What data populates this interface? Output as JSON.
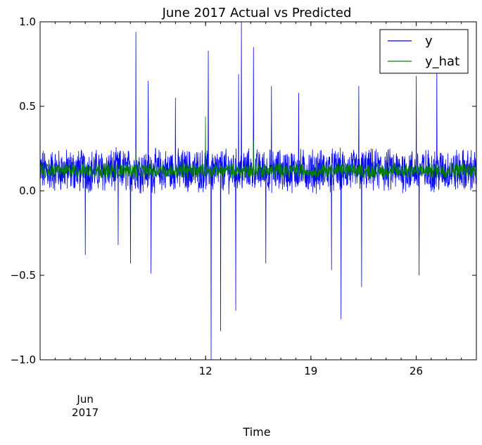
{
  "chart_data": {
    "type": "line",
    "title": "June 2017 Actual vs Predicted",
    "xlabel": "Time",
    "ylabel": "",
    "xlim": [
      "2017-06-01",
      "2017-06-30"
    ],
    "ylim": [
      -1.0,
      1.0
    ],
    "y_ticks": [
      {
        "value": -1.0,
        "label": "−1.0"
      },
      {
        "value": -0.5,
        "label": "−0.5"
      },
      {
        "value": 0.0,
        "label": "0.0"
      },
      {
        "value": 0.5,
        "label": "0.5"
      },
      {
        "value": 1.0,
        "label": "1.0"
      }
    ],
    "x_ticks": [
      {
        "value": "2017-06-12",
        "label": "12"
      },
      {
        "value": "2017-06-19",
        "label": "19"
      },
      {
        "value": "2017-06-26",
        "label": "26"
      }
    ],
    "x_major_label": {
      "value": "2017-06-04",
      "month": "Jun",
      "year": "2017"
    },
    "legend_position": "top-right",
    "grid": false,
    "series": [
      {
        "name": "y",
        "color": "#0000ff",
        "style": "dense noisy time series sampled throughout the month",
        "baseline": 0.12,
        "typical_range": [
          -0.1,
          0.3
        ],
        "spikes": [
          {
            "x": "2017-06-04",
            "y": -0.38
          },
          {
            "x": "2017-06-06",
            "y": -0.32
          },
          {
            "x": "2017-06-07",
            "y": 0.94
          },
          {
            "x": "2017-06-07",
            "y": -0.43
          },
          {
            "x": "2017-06-08",
            "y": 0.65
          },
          {
            "x": "2017-06-08",
            "y": -0.49
          },
          {
            "x": "2017-06-10",
            "y": 0.55
          },
          {
            "x": "2017-06-12",
            "y": 0.83
          },
          {
            "x": "2017-06-12",
            "y": -1.0
          },
          {
            "x": "2017-06-13",
            "y": -0.83
          },
          {
            "x": "2017-06-14",
            "y": 0.69
          },
          {
            "x": "2017-06-14",
            "y": 1.0
          },
          {
            "x": "2017-06-14",
            "y": -0.71
          },
          {
            "x": "2017-06-15",
            "y": 0.85
          },
          {
            "x": "2017-06-16",
            "y": 0.62
          },
          {
            "x": "2017-06-16",
            "y": -0.43
          },
          {
            "x": "2017-06-18",
            "y": 0.58
          },
          {
            "x": "2017-06-20",
            "y": -0.47
          },
          {
            "x": "2017-06-21",
            "y": -0.76
          },
          {
            "x": "2017-06-22",
            "y": 0.62
          },
          {
            "x": "2017-06-22",
            "y": -0.57
          },
          {
            "x": "2017-06-26",
            "y": 0.68
          },
          {
            "x": "2017-06-26",
            "y": -0.5
          },
          {
            "x": "2017-06-27",
            "y": 0.75
          }
        ]
      },
      {
        "name": "y_hat",
        "color": "#008000",
        "style": "dense smoothed prediction around baseline",
        "baseline": 0.12,
        "typical_range": [
          0.05,
          0.2
        ],
        "spikes": [
          {
            "x": "2017-06-12",
            "y": 0.44
          },
          {
            "x": "2017-06-15",
            "y": 0.3
          },
          {
            "x": "2017-06-07",
            "y": 0.25
          }
        ]
      }
    ]
  }
}
